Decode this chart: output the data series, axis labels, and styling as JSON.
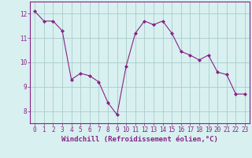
{
  "x": [
    0,
    1,
    2,
    3,
    4,
    5,
    6,
    7,
    8,
    9,
    10,
    11,
    12,
    13,
    14,
    15,
    16,
    17,
    18,
    19,
    20,
    21,
    22,
    23
  ],
  "y": [
    12.1,
    11.7,
    11.7,
    11.3,
    9.3,
    9.55,
    9.45,
    9.2,
    8.35,
    7.85,
    9.85,
    11.2,
    11.7,
    11.55,
    11.7,
    11.2,
    10.45,
    10.3,
    10.1,
    10.3,
    9.6,
    9.5,
    8.7,
    8.7
  ],
  "line_color": "#882288",
  "marker": "D",
  "marker_size": 2.0,
  "bg_color": "#d8f0f0",
  "grid_color": "#aacccc",
  "xlabel": "Windchill (Refroidissement éolien,°C)",
  "xlabel_fontsize": 6.5,
  "xlabel_color": "#882288",
  "tick_color": "#882288",
  "ylim": [
    7.5,
    12.5
  ],
  "xlim": [
    -0.5,
    23.5
  ],
  "yticks": [
    8,
    9,
    10,
    11,
    12
  ],
  "xticks": [
    0,
    1,
    2,
    3,
    4,
    5,
    6,
    7,
    8,
    9,
    10,
    11,
    12,
    13,
    14,
    15,
    16,
    17,
    18,
    19,
    20,
    21,
    22,
    23
  ],
  "tick_fontsize": 5.5,
  "linewidth": 0.8
}
